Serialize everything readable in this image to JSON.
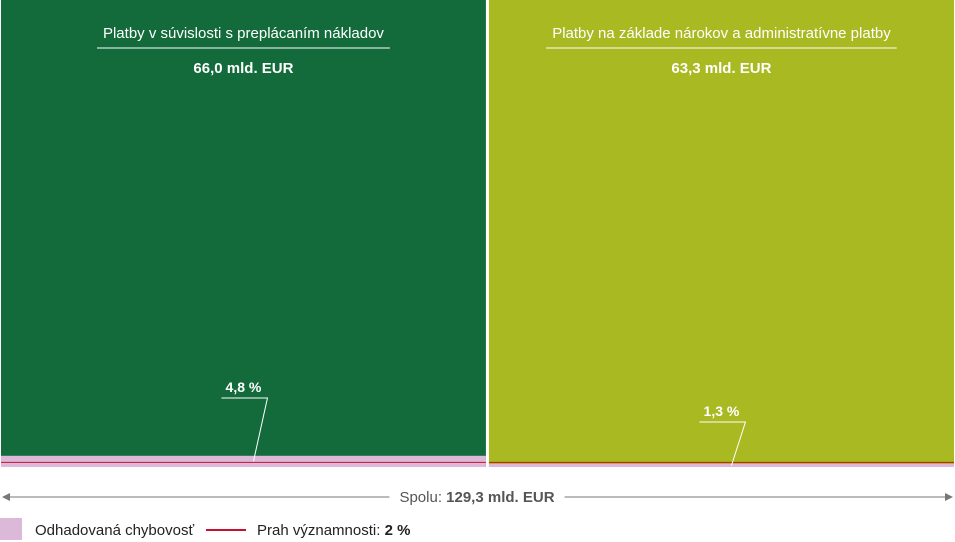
{
  "chart_data": {
    "type": "bar",
    "title": "",
    "xlabel": "",
    "ylabel": "",
    "series": [
      {
        "name": "Platby v súvislosti s preplácaním nákladov",
        "value_label": "66,0 mld. EUR",
        "value": 66.0,
        "error_rate": 4.8,
        "error_label": "4,8 %",
        "color": "#136b3c"
      },
      {
        "name": "Platby na základe nárokov a administratívne platby",
        "value_label": "63,3 mld. EUR",
        "value": 63.3,
        "error_rate": 1.3,
        "error_label": "1,3 %",
        "color": "#a9b921"
      }
    ],
    "total": {
      "prefix": "Spolu: ",
      "value_label": "129,3 mld. EUR",
      "value": 129.3
    },
    "threshold": {
      "value": 2
    },
    "legend": {
      "placement": "bottom-left",
      "error_label": "Odhadovaná chybovosť",
      "error_color": "#dcb9d9",
      "threshold_prefix": "Prah významnosti: ",
      "threshold_value_label": "2 %",
      "threshold_color": "#c8102e"
    }
  }
}
